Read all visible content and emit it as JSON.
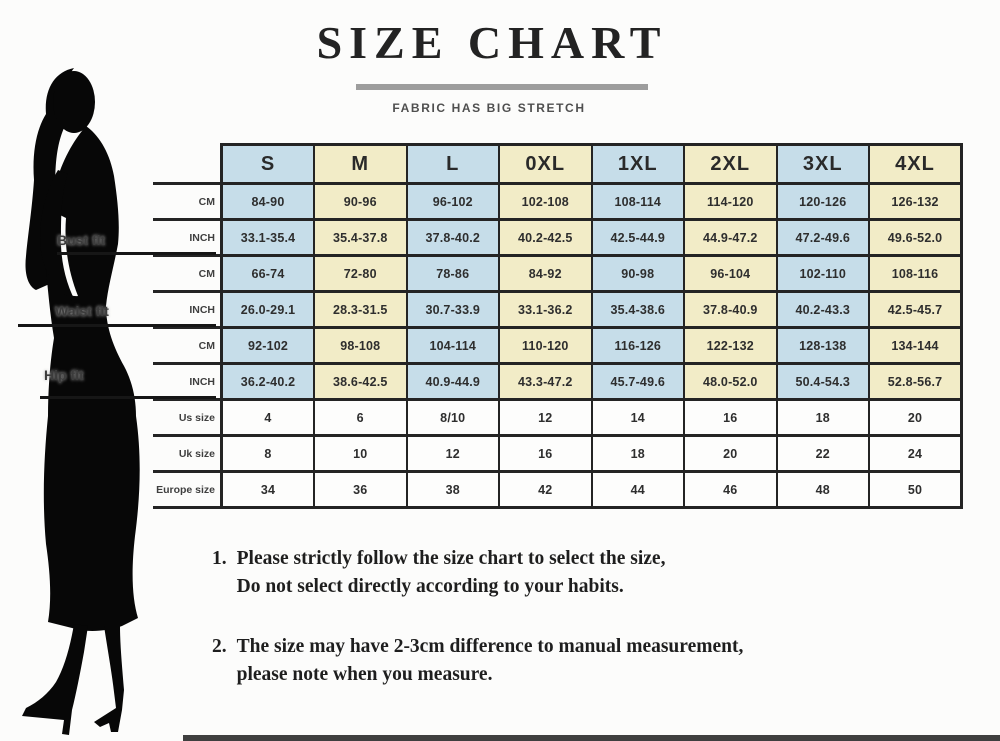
{
  "header": {
    "title": "SIZE CHART",
    "subtitle": "FABRIC HAS BIG STRETCH"
  },
  "figure": {
    "labels": [
      "Bust fit",
      "Waist fit",
      "Hip fit"
    ]
  },
  "size_chart": {
    "columns": [
      "S",
      "M",
      "L",
      "0XL",
      "1XL",
      "2XL",
      "3XL",
      "4XL"
    ],
    "rows": [
      {
        "label": "CM",
        "shaded": true,
        "values": [
          "84-90",
          "90-96",
          "96-102",
          "102-108",
          "108-114",
          "114-120",
          "120-126",
          "126-132"
        ]
      },
      {
        "label": "INCH",
        "shaded": true,
        "values": [
          "33.1-35.4",
          "35.4-37.8",
          "37.8-40.2",
          "40.2-42.5",
          "42.5-44.9",
          "44.9-47.2",
          "47.2-49.6",
          "49.6-52.0"
        ]
      },
      {
        "label": "CM",
        "shaded": true,
        "values": [
          "66-74",
          "72-80",
          "78-86",
          "84-92",
          "90-98",
          "96-104",
          "102-110",
          "108-116"
        ]
      },
      {
        "label": "INCH",
        "shaded": true,
        "values": [
          "26.0-29.1",
          "28.3-31.5",
          "30.7-33.9",
          "33.1-36.2",
          "35.4-38.6",
          "37.8-40.9",
          "40.2-43.3",
          "42.5-45.7"
        ]
      },
      {
        "label": "CM",
        "shaded": true,
        "values": [
          "92-102",
          "98-108",
          "104-114",
          "110-120",
          "116-126",
          "122-132",
          "128-138",
          "134-144"
        ]
      },
      {
        "label": "INCH",
        "shaded": true,
        "values": [
          "36.2-40.2",
          "38.6-42.5",
          "40.9-44.9",
          "43.3-47.2",
          "45.7-49.6",
          "48.0-52.0",
          "50.4-54.3",
          "52.8-56.7"
        ]
      },
      {
        "label": "Us size",
        "shaded": false,
        "values": [
          "4",
          "6",
          "8/10",
          "12",
          "14",
          "16",
          "18",
          "20"
        ]
      },
      {
        "label": "Uk size",
        "shaded": false,
        "values": [
          "8",
          "10",
          "12",
          "16",
          "18",
          "20",
          "22",
          "24"
        ]
      },
      {
        "label": "Europe size",
        "shaded": false,
        "values": [
          "34",
          "36",
          "38",
          "42",
          "44",
          "46",
          "48",
          "50"
        ]
      }
    ],
    "colors": {
      "blue": "#c6dde9",
      "yellow": "#f2ecc7",
      "border": "#242424"
    }
  },
  "notes": [
    {
      "number": "1.",
      "lines": [
        "Please strictly follow the size chart to select the size,",
        "Do not select directly according to your habits."
      ]
    },
    {
      "number": "2.",
      "lines": [
        "The size may have 2-3cm difference to manual measurement,",
        "please note when you measure."
      ]
    }
  ],
  "chart_data": {
    "type": "table",
    "title": "SIZE CHART",
    "subtitle": "FABRIC HAS BIG STRETCH",
    "columns": [
      "S",
      "M",
      "L",
      "0XL",
      "1XL",
      "2XL",
      "3XL",
      "4XL"
    ],
    "rows": [
      {
        "measure": "Bust",
        "unit": "CM",
        "values": [
          "84-90",
          "90-96",
          "96-102",
          "102-108",
          "108-114",
          "114-120",
          "120-126",
          "126-132"
        ]
      },
      {
        "measure": "Bust",
        "unit": "INCH",
        "values": [
          "33.1-35.4",
          "35.4-37.8",
          "37.8-40.2",
          "40.2-42.5",
          "42.5-44.9",
          "44.9-47.2",
          "47.2-49.6",
          "49.6-52.0"
        ]
      },
      {
        "measure": "Waist",
        "unit": "CM",
        "values": [
          "66-74",
          "72-80",
          "78-86",
          "84-92",
          "90-98",
          "96-104",
          "102-110",
          "108-116"
        ]
      },
      {
        "measure": "Waist",
        "unit": "INCH",
        "values": [
          "26.0-29.1",
          "28.3-31.5",
          "30.7-33.9",
          "33.1-36.2",
          "35.4-38.6",
          "37.8-40.9",
          "40.2-43.3",
          "42.5-45.7"
        ]
      },
      {
        "measure": "Hip",
        "unit": "CM",
        "values": [
          "92-102",
          "98-108",
          "104-114",
          "110-120",
          "116-126",
          "122-132",
          "128-138",
          "134-144"
        ]
      },
      {
        "measure": "Hip",
        "unit": "INCH",
        "values": [
          "36.2-40.2",
          "38.6-42.5",
          "40.9-44.9",
          "43.3-47.2",
          "45.7-49.6",
          "48.0-52.0",
          "50.4-54.3",
          "52.8-56.7"
        ]
      },
      {
        "measure": "Us size",
        "unit": "",
        "values": [
          "4",
          "6",
          "8/10",
          "12",
          "14",
          "16",
          "18",
          "20"
        ]
      },
      {
        "measure": "Uk size",
        "unit": "",
        "values": [
          "8",
          "10",
          "12",
          "16",
          "18",
          "20",
          "22",
          "24"
        ]
      },
      {
        "measure": "Europe size",
        "unit": "",
        "values": [
          "34",
          "36",
          "38",
          "42",
          "44",
          "46",
          "48",
          "50"
        ]
      }
    ]
  }
}
